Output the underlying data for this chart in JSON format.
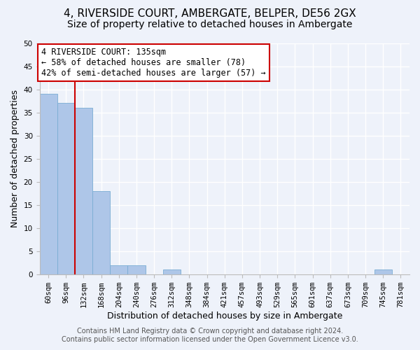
{
  "title": "4, RIVERSIDE COURT, AMBERGATE, BELPER, DE56 2GX",
  "subtitle": "Size of property relative to detached houses in Ambergate",
  "xlabel": "Distribution of detached houses by size in Ambergate",
  "ylabel": "Number of detached properties",
  "categories": [
    "60sqm",
    "96sqm",
    "132sqm",
    "168sqm",
    "204sqm",
    "240sqm",
    "276sqm",
    "312sqm",
    "348sqm",
    "384sqm",
    "421sqm",
    "457sqm",
    "493sqm",
    "529sqm",
    "565sqm",
    "601sqm",
    "637sqm",
    "673sqm",
    "709sqm",
    "745sqm",
    "781sqm"
  ],
  "values": [
    39,
    37,
    36,
    18,
    2,
    2,
    0,
    1,
    0,
    0,
    0,
    0,
    0,
    0,
    0,
    0,
    0,
    0,
    0,
    1,
    0
  ],
  "bar_color": "#aec6e8",
  "bar_edge_color": "#7aadd4",
  "property_line_x": 2,
  "property_line_color": "#cc0000",
  "annotation_text": "4 RIVERSIDE COURT: 135sqm\n← 58% of detached houses are smaller (78)\n42% of semi-detached houses are larger (57) →",
  "annotation_box_color": "#ffffff",
  "annotation_box_edge_color": "#cc0000",
  "ylim": [
    0,
    50
  ],
  "yticks": [
    0,
    5,
    10,
    15,
    20,
    25,
    30,
    35,
    40,
    45,
    50
  ],
  "background_color": "#eef2fa",
  "axes_background": "#eef2fa",
  "grid_color": "#ffffff",
  "footer_line1": "Contains HM Land Registry data © Crown copyright and database right 2024.",
  "footer_line2": "Contains public sector information licensed under the Open Government Licence v3.0.",
  "title_fontsize": 11,
  "subtitle_fontsize": 10,
  "xlabel_fontsize": 9,
  "ylabel_fontsize": 9,
  "tick_fontsize": 7.5,
  "footer_fontsize": 7,
  "annotation_fontsize": 8.5
}
